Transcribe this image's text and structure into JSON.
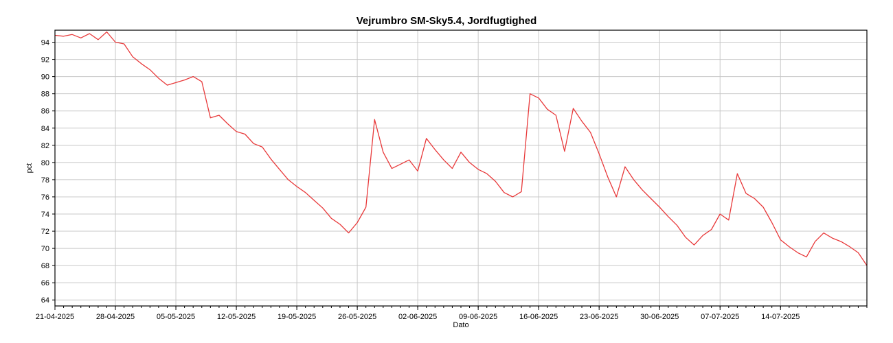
{
  "chart_data": {
    "type": "line",
    "title": "Vejrumbro SM-Sky5.4, Jordfugtighed",
    "xlabel": "Dato",
    "ylabel": "pct",
    "x_start": "2025-04-21",
    "x_end": "2025-07-24",
    "xlim": [
      "2025-04-21",
      "2025-07-24"
    ],
    "ylim": [
      63.3,
      95.4
    ],
    "grid": true,
    "legend": "none",
    "line_color": "#e8393a",
    "y_ticks": [
      64,
      66,
      68,
      70,
      72,
      74,
      76,
      78,
      80,
      82,
      84,
      86,
      88,
      90,
      92,
      94
    ],
    "x_tick_labels": [
      "21-04-2025",
      "28-04-2025",
      "05-05-2025",
      "12-05-2025",
      "19-05-2025",
      "26-05-2025",
      "02-06-2025",
      "09-06-2025",
      "16-06-2025",
      "23-06-2025",
      "30-06-2025",
      "07-07-2025",
      "14-07-2025"
    ],
    "series": [
      {
        "values": [
          [
            "2025-04-21",
            94.8
          ],
          [
            "2025-04-22",
            94.7
          ],
          [
            "2025-04-23",
            94.9
          ],
          [
            "2025-04-24",
            94.5
          ],
          [
            "2025-04-25",
            95.0
          ],
          [
            "2025-04-26",
            94.3
          ],
          [
            "2025-04-27",
            95.2
          ],
          [
            "2025-04-28",
            94.0
          ],
          [
            "2025-04-29",
            93.8
          ],
          [
            "2025-04-30",
            92.3
          ],
          [
            "2025-05-01",
            91.5
          ],
          [
            "2025-05-02",
            90.8
          ],
          [
            "2025-05-03",
            89.8
          ],
          [
            "2025-05-04",
            89.0
          ],
          [
            "2025-05-05",
            89.3
          ],
          [
            "2025-05-06",
            89.6
          ],
          [
            "2025-05-07",
            90.0
          ],
          [
            "2025-05-08",
            89.4
          ],
          [
            "2025-05-09",
            85.2
          ],
          [
            "2025-05-10",
            85.5
          ],
          [
            "2025-05-11",
            84.5
          ],
          [
            "2025-05-12",
            83.6
          ],
          [
            "2025-05-13",
            83.3
          ],
          [
            "2025-05-14",
            82.2
          ],
          [
            "2025-05-15",
            81.8
          ],
          [
            "2025-05-16",
            80.4
          ],
          [
            "2025-05-17",
            79.2
          ],
          [
            "2025-05-18",
            78.0
          ],
          [
            "2025-05-19",
            77.2
          ],
          [
            "2025-05-20",
            76.5
          ],
          [
            "2025-05-21",
            75.6
          ],
          [
            "2025-05-22",
            74.7
          ],
          [
            "2025-05-23",
            73.5
          ],
          [
            "2025-05-24",
            72.8
          ],
          [
            "2025-05-25",
            71.8
          ],
          [
            "2025-05-26",
            73.0
          ],
          [
            "2025-05-27",
            74.8
          ],
          [
            "2025-05-28",
            85.0
          ],
          [
            "2025-05-29",
            81.2
          ],
          [
            "2025-05-30",
            79.3
          ],
          [
            "2025-05-31",
            79.8
          ],
          [
            "2025-06-01",
            80.3
          ],
          [
            "2025-06-02",
            79.0
          ],
          [
            "2025-06-03",
            82.8
          ],
          [
            "2025-06-04",
            81.5
          ],
          [
            "2025-06-05",
            80.3
          ],
          [
            "2025-06-06",
            79.3
          ],
          [
            "2025-06-07",
            81.2
          ],
          [
            "2025-06-08",
            80.0
          ],
          [
            "2025-06-09",
            79.2
          ],
          [
            "2025-06-10",
            78.7
          ],
          [
            "2025-06-11",
            77.8
          ],
          [
            "2025-06-12",
            76.5
          ],
          [
            "2025-06-13",
            76.0
          ],
          [
            "2025-06-14",
            76.6
          ],
          [
            "2025-06-15",
            88.0
          ],
          [
            "2025-06-16",
            87.5
          ],
          [
            "2025-06-17",
            86.2
          ],
          [
            "2025-06-18",
            85.5
          ],
          [
            "2025-06-19",
            81.3
          ],
          [
            "2025-06-20",
            86.3
          ],
          [
            "2025-06-21",
            84.8
          ],
          [
            "2025-06-22",
            83.5
          ],
          [
            "2025-06-23",
            81.0
          ],
          [
            "2025-06-24",
            78.3
          ],
          [
            "2025-06-25",
            76.0
          ],
          [
            "2025-06-26",
            79.5
          ],
          [
            "2025-06-27",
            78.0
          ],
          [
            "2025-06-28",
            76.8
          ],
          [
            "2025-06-29",
            75.8
          ],
          [
            "2025-06-30",
            74.8
          ],
          [
            "2025-07-01",
            73.7
          ],
          [
            "2025-07-02",
            72.7
          ],
          [
            "2025-07-03",
            71.3
          ],
          [
            "2025-07-04",
            70.4
          ],
          [
            "2025-07-05",
            71.5
          ],
          [
            "2025-07-06",
            72.2
          ],
          [
            "2025-07-07",
            74.0
          ],
          [
            "2025-07-08",
            73.3
          ],
          [
            "2025-07-09",
            78.7
          ],
          [
            "2025-07-10",
            76.4
          ],
          [
            "2025-07-11",
            75.8
          ],
          [
            "2025-07-12",
            74.8
          ],
          [
            "2025-07-13",
            73.0
          ],
          [
            "2025-07-14",
            71.0
          ],
          [
            "2025-07-15",
            70.2
          ],
          [
            "2025-07-16",
            69.5
          ],
          [
            "2025-07-17",
            69.0
          ],
          [
            "2025-07-18",
            70.8
          ],
          [
            "2025-07-19",
            71.8
          ],
          [
            "2025-07-20",
            71.2
          ],
          [
            "2025-07-21",
            70.8
          ],
          [
            "2025-07-22",
            70.2
          ],
          [
            "2025-07-23",
            69.5
          ],
          [
            "2025-07-24",
            68.0
          ]
        ]
      }
    ]
  }
}
